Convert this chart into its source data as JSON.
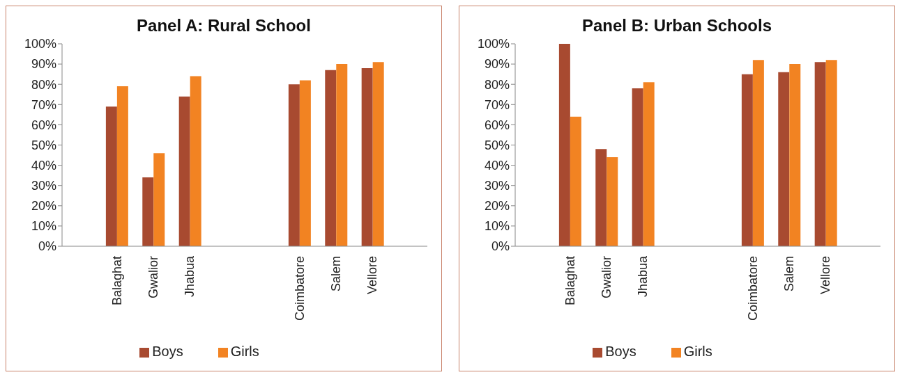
{
  "chart_data": [
    {
      "type": "bar",
      "title": "Panel A: Rural School",
      "categories": [
        null,
        "Balaghat",
        "Gwalior",
        "Jhabua",
        null,
        null,
        "Coimbatore",
        "Salem",
        "Vellore",
        null
      ],
      "series": [
        {
          "name": "Boys",
          "color": "#a84a30",
          "values": [
            null,
            69,
            34,
            74,
            null,
            null,
            80,
            87,
            88,
            null
          ]
        },
        {
          "name": "Girls",
          "color": "#f28322",
          "values": [
            null,
            79,
            46,
            84,
            null,
            null,
            82,
            90,
            91,
            null
          ]
        }
      ],
      "ylim": [
        0,
        100
      ],
      "yticks": [
        {
          "value": 0,
          "label": "0%"
        },
        {
          "value": 10,
          "label": "10%"
        },
        {
          "value": 20,
          "label": "20%"
        },
        {
          "value": 30,
          "label": "30%"
        },
        {
          "value": 40,
          "label": "40%"
        },
        {
          "value": 50,
          "label": "50%"
        },
        {
          "value": 60,
          "label": "60%"
        },
        {
          "value": 70,
          "label": "70%"
        },
        {
          "value": 80,
          "label": "80%"
        },
        {
          "value": 90,
          "label": "90%"
        },
        {
          "value": 100,
          "label": "100%"
        }
      ],
      "grid": false,
      "legend": "bottom"
    },
    {
      "type": "bar",
      "title": "Panel B: Urban Schools",
      "categories": [
        null,
        "Balaghat",
        "Gwalior",
        "Jhabua",
        null,
        null,
        "Coimbatore",
        "Salem",
        "Vellore",
        null
      ],
      "series": [
        {
          "name": "Boys",
          "color": "#a84a30",
          "values": [
            null,
            100,
            48,
            78,
            null,
            null,
            85,
            86,
            91,
            null
          ]
        },
        {
          "name": "Girls",
          "color": "#f28322",
          "values": [
            null,
            64,
            44,
            81,
            null,
            null,
            92,
            90,
            92,
            null
          ]
        }
      ],
      "ylim": [
        0,
        100
      ],
      "yticks": [
        {
          "value": 0,
          "label": "0%"
        },
        {
          "value": 10,
          "label": "10%"
        },
        {
          "value": 20,
          "label": "20%"
        },
        {
          "value": 30,
          "label": "30%"
        },
        {
          "value": 40,
          "label": "40%"
        },
        {
          "value": 50,
          "label": "50%"
        },
        {
          "value": 60,
          "label": "60%"
        },
        {
          "value": 70,
          "label": "70%"
        },
        {
          "value": 80,
          "label": "80%"
        },
        {
          "value": 90,
          "label": "90%"
        },
        {
          "value": 100,
          "label": "100%"
        }
      ],
      "grid": false,
      "legend": "bottom"
    }
  ]
}
